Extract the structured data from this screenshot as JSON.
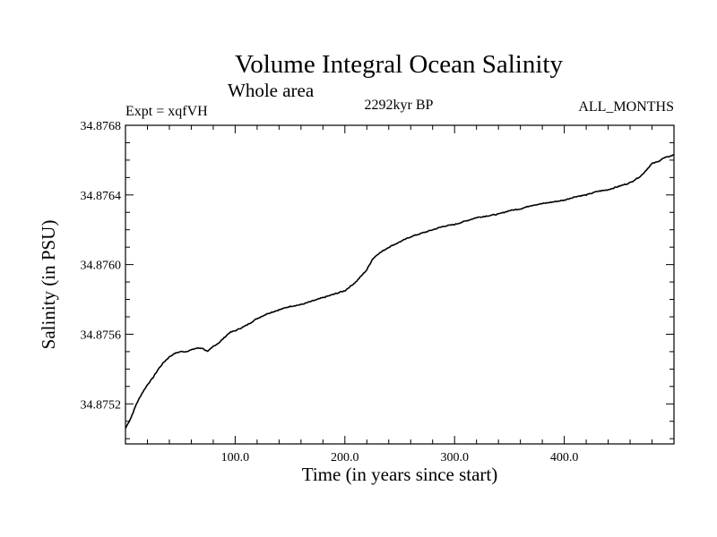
{
  "chart_data": {
    "type": "line",
    "title": "Volume Integral Ocean Salinity",
    "subtitle": "Whole area",
    "left_label": "Expt = xqfVH",
    "center_label": "2292kyr BP",
    "right_label": "ALL_MONTHS",
    "xlabel": "Time (in years since start)",
    "ylabel": "Salinity (in PSU)",
    "xlim": [
      0,
      500
    ],
    "ylim": [
      34.87497,
      34.8768
    ],
    "xticks": [
      100,
      200,
      300,
      400
    ],
    "xtick_labels": [
      "100.0",
      "200.0",
      "300.0",
      "400.0"
    ],
    "yticks": [
      34.8752,
      34.8756,
      34.876,
      34.8764,
      34.8768
    ],
    "ytick_labels": [
      "34.8752",
      "34.8756",
      "34.8760",
      "34.8764",
      "34.8768"
    ],
    "grid": false,
    "series": [
      {
        "name": "salinity",
        "x": [
          0,
          5,
          10,
          15,
          20,
          25,
          30,
          35,
          40,
          45,
          50,
          55,
          60,
          65,
          70,
          75,
          80,
          85,
          90,
          95,
          100,
          110,
          120,
          130,
          140,
          150,
          160,
          170,
          180,
          190,
          200,
          210,
          220,
          225,
          230,
          235,
          240,
          250,
          260,
          270,
          280,
          290,
          300,
          310,
          320,
          330,
          340,
          350,
          360,
          370,
          380,
          390,
          400,
          410,
          420,
          430,
          440,
          450,
          460,
          470,
          480,
          485,
          490,
          495,
          500
        ],
        "y": [
          34.87506,
          34.87512,
          34.8752,
          34.87526,
          34.87531,
          34.87535,
          34.8754,
          34.87544,
          34.87547,
          34.87549,
          34.8755,
          34.8755,
          34.87551,
          34.87552,
          34.87552,
          34.8755,
          34.87553,
          34.87555,
          34.87558,
          34.87561,
          34.87562,
          34.87565,
          34.87569,
          34.87572,
          34.87574,
          34.87576,
          34.87577,
          34.87579,
          34.87581,
          34.87583,
          34.87585,
          34.8759,
          34.87597,
          34.87603,
          34.87606,
          34.87608,
          34.8761,
          34.87613,
          34.87616,
          34.87618,
          34.8762,
          34.87622,
          34.87623,
          34.87625,
          34.87627,
          34.87628,
          34.87629,
          34.87631,
          34.87632,
          34.87634,
          34.87635,
          34.87636,
          34.87637,
          34.87639,
          34.8764,
          34.87642,
          34.87643,
          34.87645,
          34.87647,
          34.87651,
          34.87658,
          34.87659,
          34.87661,
          34.87662,
          34.87663
        ]
      }
    ]
  }
}
